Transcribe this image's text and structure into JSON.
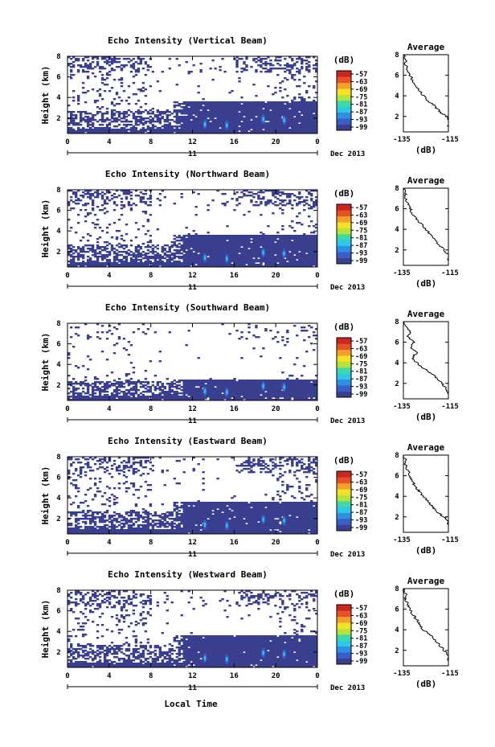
{
  "chart_data": {
    "type": "heatmap",
    "shared": {
      "xlabel": "Local Time",
      "date_label": "11",
      "month_label": "Dec 2013",
      "x_ticks": [
        "0",
        "4",
        "8",
        "12",
        "16",
        "20",
        "0"
      ],
      "xlim": [
        0,
        24
      ],
      "ylabel": "Height (km)",
      "ylim": [
        0.5,
        8
      ],
      "y_ticks": [
        "2",
        "4",
        "6",
        "8"
      ],
      "colorbar_title": "(dB)",
      "colorbar_ticks": [
        "-57",
        "-63",
        "-69",
        "-75",
        "-81",
        "-87",
        "-93",
        "-99"
      ],
      "colorbar_range": [
        -99,
        -57
      ],
      "colormap": [
        "#3b3f8f",
        "#3a5ec8",
        "#2f8fe0",
        "#2fc7e8",
        "#3fd9a8",
        "#b8e23a",
        "#f2e12a",
        "#f5a02a",
        "#e8502a",
        "#c8281f"
      ],
      "avg_title": "Average",
      "avg_xlabel": "(dB)",
      "avg_xticks": [
        "-135",
        "-115"
      ],
      "avg_xlim": [
        -135,
        -115
      ],
      "avg_yticks": [
        "2",
        "4",
        "6",
        "8"
      ]
    },
    "panels": [
      {
        "title": "Echo Intensity (Vertical Beam)",
        "profile": {
          "height": [
            1.0,
            1.5,
            2.0,
            2.5,
            3.0,
            3.5,
            4.0,
            4.5,
            5.0,
            5.5,
            6.0,
            6.5,
            7.0,
            7.5,
            8.0
          ],
          "db": [
            -115,
            -114,
            -116,
            -119,
            -121,
            -124,
            -126,
            -128,
            -130,
            -131,
            -132,
            -133,
            -134,
            -134,
            -135
          ]
        }
      },
      {
        "title": "Echo Intensity (Northward Beam)",
        "profile": {
          "height": [
            1.0,
            1.5,
            2.0,
            2.5,
            3.0,
            3.5,
            4.0,
            4.5,
            5.0,
            5.5,
            6.0,
            6.5,
            7.0,
            7.5,
            8.0
          ],
          "db": [
            -115,
            -115,
            -117,
            -119,
            -121,
            -123,
            -125,
            -127,
            -129,
            -131,
            -132,
            -133,
            -134,
            -134,
            -135
          ]
        }
      },
      {
        "title": "Echo Intensity (Southward Beam)",
        "profile": {
          "height": [
            1.0,
            1.5,
            2.0,
            2.5,
            3.0,
            3.5,
            4.0,
            4.5,
            5.0,
            5.5,
            6.0,
            6.5,
            7.0,
            7.5,
            8.0
          ],
          "db": [
            -115,
            -116,
            -118,
            -120,
            -123,
            -126,
            -129,
            -131,
            -129,
            -132,
            -130,
            -133,
            -132,
            -134,
            -135
          ]
        }
      },
      {
        "title": "Echo Intensity (Eastward Beam)",
        "profile": {
          "height": [
            1.0,
            1.5,
            2.0,
            2.5,
            3.0,
            3.5,
            4.0,
            4.5,
            5.0,
            5.5,
            6.0,
            6.5,
            7.0,
            7.5,
            8.0
          ],
          "db": [
            -115,
            -115,
            -117,
            -120,
            -122,
            -124,
            -126,
            -128,
            -130,
            -131,
            -132,
            -133,
            -134,
            -134,
            -135
          ]
        }
      },
      {
        "title": "Echo Intensity (Westward Beam)",
        "profile": {
          "height": [
            1.0,
            1.5,
            2.0,
            2.5,
            3.0,
            3.5,
            4.0,
            4.5,
            5.0,
            5.5,
            6.0,
            6.5,
            7.0,
            7.5,
            8.0
          ],
          "db": [
            -115,
            -115,
            -117,
            -119,
            -121,
            -123,
            -126,
            -128,
            -129,
            -131,
            -132,
            -133,
            -134,
            -134,
            -135
          ]
        }
      }
    ]
  }
}
